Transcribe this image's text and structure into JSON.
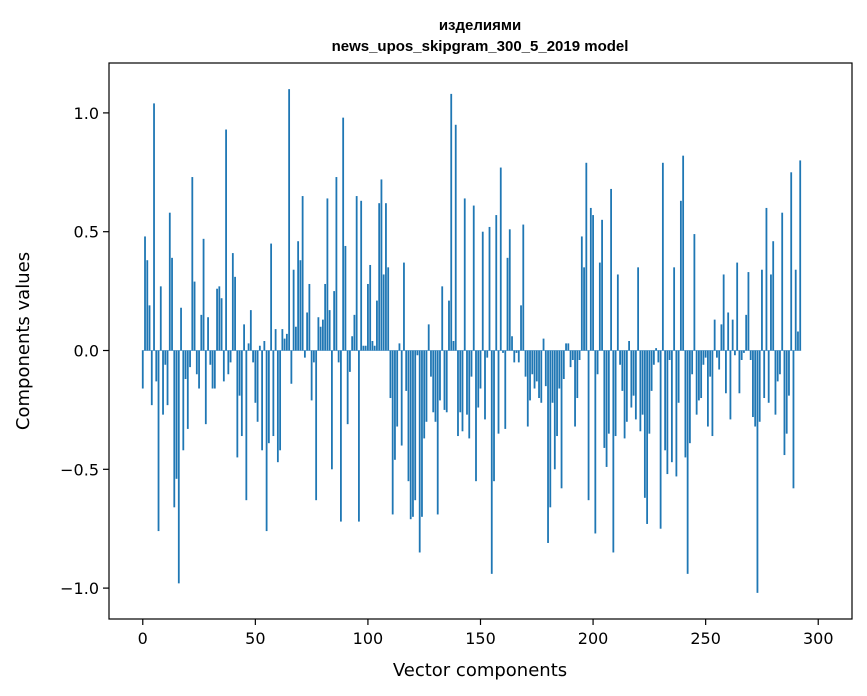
{
  "chart_data": {
    "type": "bar",
    "title_line1": "изделиями",
    "title_line2": "news_upos_skipgram_300_5_2019 model",
    "xlabel": "Vector components",
    "ylabel": "Components values",
    "xlim": [
      -15,
      315
    ],
    "ylim": [
      -1.13,
      1.21
    ],
    "x_ticks": [
      0,
      50,
      100,
      150,
      200,
      250,
      300
    ],
    "x_tick_labels": [
      "0",
      "50",
      "100",
      "150",
      "200",
      "250",
      "300"
    ],
    "y_ticks": [
      -1.0,
      -0.5,
      0.0,
      0.5,
      1.0
    ],
    "y_tick_labels": [
      "−1.0",
      "−0.5",
      "0.0",
      "0.5",
      "1.0"
    ],
    "bar_color": "#1f77b4",
    "grid": false,
    "values": [
      -0.16,
      0.48,
      0.38,
      0.19,
      -0.23,
      1.04,
      -0.13,
      -0.76,
      0.27,
      -0.27,
      -0.06,
      -0.23,
      0.58,
      0.39,
      -0.66,
      -0.54,
      -0.98,
      0.18,
      -0.42,
      -0.12,
      -0.33,
      -0.07,
      0.73,
      0.29,
      -0.1,
      -0.16,
      0.15,
      0.47,
      -0.31,
      0.14,
      -0.06,
      -0.16,
      -0.16,
      0.26,
      0.27,
      0.22,
      -0.13,
      0.93,
      -0.1,
      -0.05,
      0.41,
      0.31,
      -0.45,
      -0.19,
      -0.36,
      0.11,
      -0.63,
      0.03,
      0.17,
      -0.05,
      -0.22,
      -0.3,
      0.02,
      -0.42,
      0.04,
      -0.76,
      -0.39,
      0.45,
      -0.36,
      0.09,
      -0.47,
      -0.42,
      0.09,
      0.05,
      0.07,
      1.1,
      -0.14,
      0.34,
      0.1,
      0.46,
      0.38,
      0.65,
      -0.03,
      0.16,
      0.28,
      -0.21,
      -0.05,
      -0.63,
      0.14,
      0.1,
      0.13,
      0.28,
      0.64,
      0.17,
      -0.5,
      0.25,
      0.73,
      -0.05,
      -0.72,
      0.98,
      0.44,
      -0.31,
      -0.09,
      0.06,
      0.15,
      0.65,
      -0.72,
      0.63,
      0.02,
      0.02,
      0.28,
      0.36,
      0.04,
      0.02,
      0.21,
      0.62,
      0.72,
      0.32,
      0.62,
      0.35,
      -0.2,
      -0.69,
      -0.46,
      -0.32,
      0.03,
      -0.4,
      0.37,
      -0.17,
      -0.55,
      -0.71,
      -0.7,
      -0.63,
      -0.02,
      -0.85,
      -0.7,
      -0.37,
      -0.3,
      0.11,
      -0.11,
      -0.26,
      -0.3,
      -0.69,
      -0.21,
      0.27,
      -0.25,
      -0.26,
      0.21,
      1.08,
      0.04,
      0.95,
      -0.36,
      -0.26,
      -0.34,
      0.64,
      -0.27,
      -0.37,
      -0.11,
      0.61,
      -0.55,
      -0.24,
      -0.16,
      0.5,
      -0.29,
      -0.03,
      0.52,
      -0.94,
      -0.55,
      0.57,
      -0.35,
      0.77,
      -0.01,
      -0.33,
      0.39,
      0.51,
      0.06,
      -0.05,
      -0.01,
      -0.05,
      0.19,
      0.53,
      -0.11,
      -0.32,
      -0.21,
      -0.1,
      -0.16,
      -0.13,
      -0.2,
      -0.22,
      0.05,
      -0.15,
      -0.81,
      -0.66,
      -0.22,
      -0.5,
      -0.36,
      -0.16,
      -0.58,
      -0.12,
      0.03,
      0.03,
      -0.07,
      -0.04,
      -0.32,
      -0.2,
      -0.04,
      0.48,
      0.35,
      0.79,
      -0.63,
      0.6,
      0.57,
      -0.77,
      -0.1,
      0.37,
      0.55,
      -0.41,
      -0.49,
      -0.35,
      0.68,
      -0.85,
      -0.36,
      0.32,
      -0.06,
      -0.17,
      -0.37,
      -0.3,
      0.04,
      -0.24,
      -0.19,
      -0.29,
      0.35,
      -0.34,
      -0.27,
      -0.62,
      -0.73,
      -0.35,
      -0.17,
      -0.06,
      0.01,
      -0.05,
      -0.75,
      0.79,
      -0.42,
      -0.52,
      -0.04,
      -0.47,
      0.35,
      -0.53,
      -0.22,
      0.63,
      0.82,
      -0.45,
      -0.94,
      -0.39,
      -0.1,
      0.49,
      -0.27,
      -0.21,
      -0.2,
      -0.06,
      -0.03,
      -0.32,
      -0.11,
      -0.36,
      0.13,
      -0.03,
      -0.08,
      0.11,
      0.32,
      -0.18,
      0.16,
      -0.29,
      0.13,
      -0.02,
      0.37,
      -0.18,
      -0.04,
      -0.01,
      0.15,
      0.33,
      -0.04,
      -0.28,
      -0.32,
      -1.02,
      -0.3,
      0.34,
      -0.2,
      0.6,
      -0.22,
      0.32,
      0.46,
      -0.27,
      -0.13,
      -0.1,
      0.58,
      -0.44,
      -0.35,
      -0.19,
      0.75,
      -0.58,
      0.34,
      0.08,
      0.8
    ]
  }
}
